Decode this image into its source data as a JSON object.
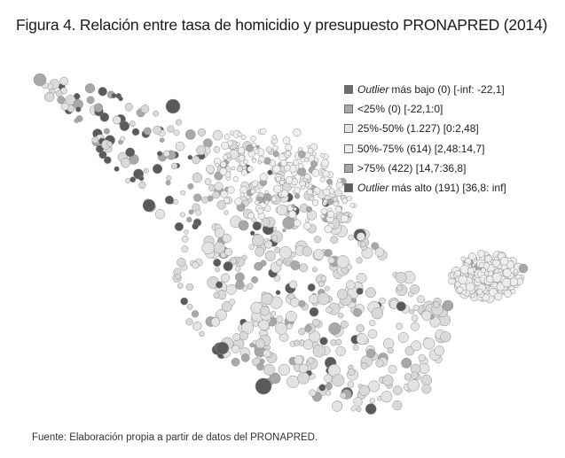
{
  "title": "Figura 4. Relación entre tasa de homicidio y presupuesto PRONAPRED (2014)",
  "legend": [
    {
      "prefix": "Outlier",
      "label": "más bajo (0) [-inf: -22,1]",
      "color": "#6b6b6b"
    },
    {
      "prefix": "",
      "label": "<25% (0) [-22,1:0]",
      "color": "#a9a9a9"
    },
    {
      "prefix": "",
      "label": "25%-50% (1.227) [0:2,48]",
      "color": "#e6e6e6"
    },
    {
      "prefix": "",
      "label": "50%-75% (614) [2,48:14,7]",
      "color": "#efefef"
    },
    {
      "prefix": "",
      "label": ">75% (422) [14,7:36,8]",
      "color": "#a6a6a6"
    },
    {
      "prefix": "Outlier",
      "label": "más alto (191) [36,8: inf]",
      "color": "#5e5e5e"
    }
  ],
  "category_colors": {
    "lower_outlier": "#6b6b6b",
    "q1": "#a9a9a9",
    "q2": "#e3e3e3",
    "q3": "#d9d9d9",
    "q4": "#a8a8a8",
    "upper_outlier": "#5a5a5a"
  },
  "source": "Fuente: Elaboración propia a partir de datos del PRONAPRED."
}
